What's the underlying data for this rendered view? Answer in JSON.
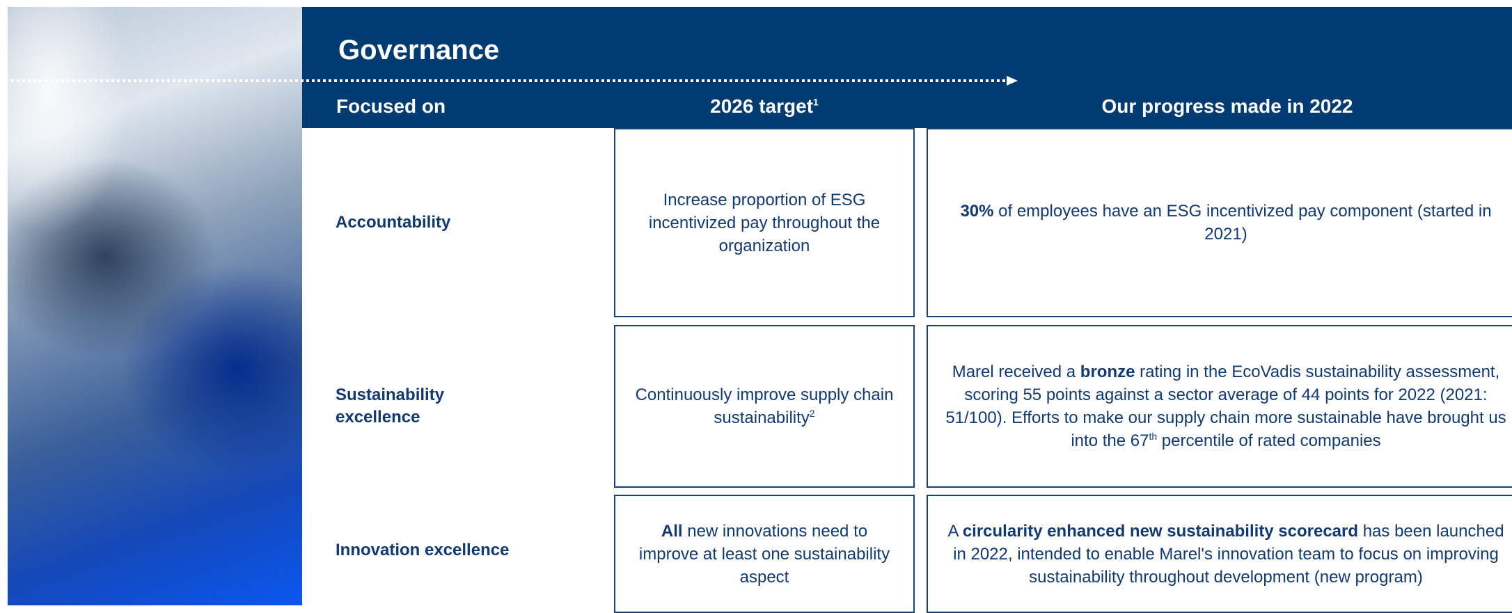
{
  "header": {
    "title": "Governance",
    "columns": [
      [
        {
          "text": "Focused on"
        }
      ],
      [
        {
          "text": "2026 target"
        },
        {
          "text": "1",
          "style": "sup"
        }
      ],
      [
        {
          "text": "Our progress made in 2022"
        }
      ]
    ]
  },
  "rows": [
    {
      "label": "Accountability",
      "target": [
        {
          "text": "Increase proportion of ESG incentivized pay throughout the organization"
        }
      ],
      "progress": [
        {
          "text": "30%",
          "style": "bold"
        },
        {
          "text": " of employees have an ESG incentivized pay component (started in 2021)"
        }
      ]
    },
    {
      "label": "Sustainability excellence",
      "target": [
        {
          "text": "Continuously improve supply chain sustainability"
        },
        {
          "text": "2",
          "style": "sup"
        }
      ],
      "progress": [
        {
          "text": "Marel received a "
        },
        {
          "text": "bronze",
          "style": "bold"
        },
        {
          "text": " rating in the EcoVadis sustainability assessment, scoring 55 points against a sector average of 44 points for 2022 (2021: 51/100). Efforts to make our supply chain more sustainable have brought us into the 67"
        },
        {
          "text": "th",
          "style": "sup"
        },
        {
          "text": " percentile of rated companies"
        }
      ]
    },
    {
      "label": "Innovation excellence",
      "target": [
        {
          "text": "All",
          "style": "bold"
        },
        {
          "text": " new innovations need to improve at least one sustainability aspect"
        }
      ],
      "progress": [
        {
          "text": "A "
        },
        {
          "text": "circularity enhanced new sustainability scorecard",
          "style": "bold"
        },
        {
          "text": " has been launched in 2022,  intended to enable Marel's innovation team to focus on improving sustainability throughout development (new program)"
        }
      ]
    }
  ]
}
